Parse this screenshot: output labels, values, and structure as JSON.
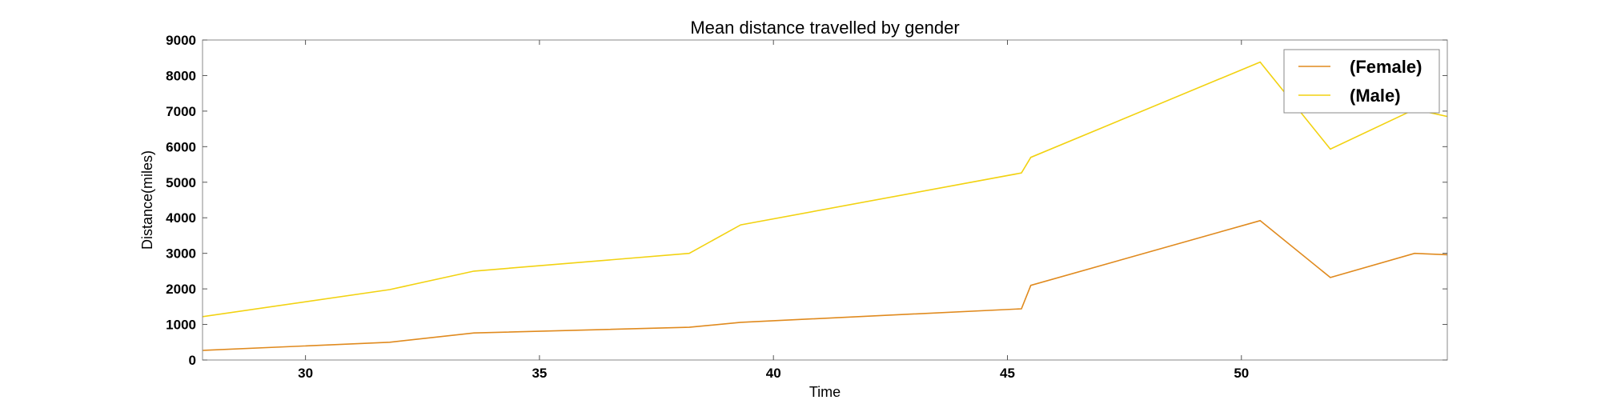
{
  "chart_data": {
    "type": "line",
    "title": "Mean distance travelled by gender",
    "xlabel": "Time",
    "ylabel": "Distance(miles)",
    "xlim": [
      27.8,
      54.4
    ],
    "ylim": [
      0,
      9000
    ],
    "x_ticks": [
      30,
      35,
      40,
      45,
      50
    ],
    "y_ticks": [
      0,
      1000,
      2000,
      3000,
      4000,
      5000,
      6000,
      7000,
      8000,
      9000
    ],
    "grid": false,
    "legend_position": "top-right",
    "series": [
      {
        "name": "(Female)",
        "color": "#e08a1e",
        "points": [
          [
            27.8,
            270
          ],
          [
            31.8,
            500
          ],
          [
            33.6,
            760
          ],
          [
            38.2,
            920
          ],
          [
            39.3,
            1060
          ],
          [
            45.3,
            1440
          ],
          [
            45.5,
            2100
          ],
          [
            50.4,
            3920
          ],
          [
            51.9,
            2320
          ],
          [
            53.7,
            3000
          ],
          [
            54.4,
            2960
          ]
        ]
      },
      {
        "name": "(Male)",
        "color": "#f2d211",
        "points": [
          [
            27.8,
            1220
          ],
          [
            31.8,
            1980
          ],
          [
            33.6,
            2500
          ],
          [
            38.2,
            3000
          ],
          [
            39.3,
            3800
          ],
          [
            45.3,
            5260
          ],
          [
            45.5,
            5700
          ],
          [
            50.4,
            8380
          ],
          [
            51.9,
            5930
          ],
          [
            53.7,
            7050
          ],
          [
            54.4,
            6850
          ]
        ]
      }
    ]
  }
}
